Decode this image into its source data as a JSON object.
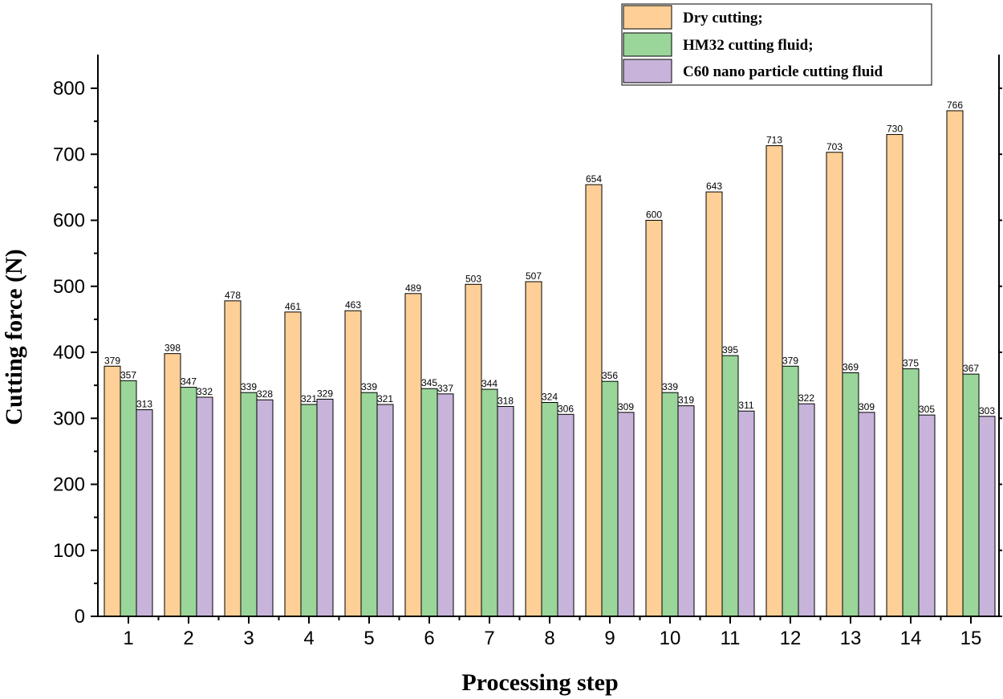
{
  "chart_data": {
    "type": "bar",
    "title": "",
    "xlabel": "Processing step",
    "ylabel": "Cutting force (N)",
    "ylim": [
      0,
      850
    ],
    "yticks": [
      0,
      100,
      200,
      300,
      400,
      500,
      600,
      700,
      800
    ],
    "categories": [
      "1",
      "2",
      "3",
      "4",
      "5",
      "6",
      "7",
      "8",
      "9",
      "10",
      "11",
      "12",
      "13",
      "14",
      "15"
    ],
    "series": [
      {
        "name": "Dry cutting;",
        "color": "#FECF96",
        "values": [
          379,
          398,
          478,
          461,
          463,
          489,
          503,
          507,
          654,
          600,
          643,
          713,
          703,
          730,
          766
        ]
      },
      {
        "name": "HM32 cutting fluid;",
        "color": "#9AD59A",
        "values": [
          357,
          347,
          339,
          321,
          339,
          345,
          344,
          324,
          356,
          339,
          395,
          379,
          369,
          375,
          367
        ]
      },
      {
        "name": "C60 nano particle cutting fluid",
        "color": "#C8B4DA",
        "values": [
          313,
          332,
          328,
          329,
          321,
          337,
          318,
          306,
          309,
          319,
          311,
          322,
          309,
          305,
          303
        ]
      }
    ],
    "legend_position": "top-right",
    "grid": false
  }
}
